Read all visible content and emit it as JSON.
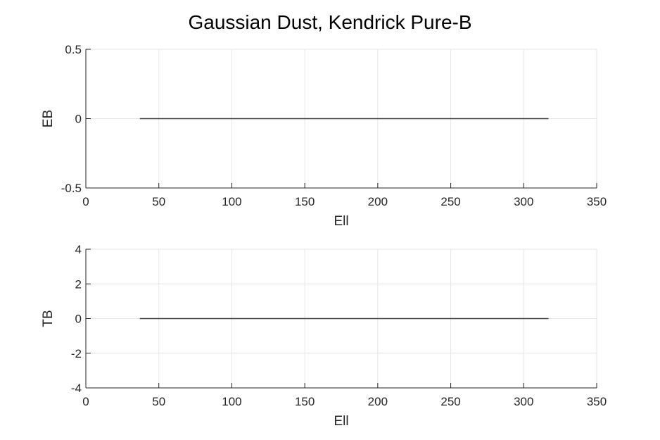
{
  "figure": {
    "title": "Gaussian Dust, Kendrick Pure-B"
  },
  "chart_data": [
    {
      "type": "line",
      "xlabel": "Ell",
      "ylabel": "EB",
      "xlim": [
        0,
        350
      ],
      "ylim": [
        -0.5,
        0.5
      ],
      "xticks": [
        0,
        50,
        100,
        150,
        200,
        250,
        300,
        350
      ],
      "yticks": [
        -0.5,
        0,
        0.5
      ],
      "xtick_labels": [
        "0",
        "50",
        "100",
        "150",
        "200",
        "250",
        "300",
        "350"
      ],
      "ytick_labels": [
        "-0.5",
        "0",
        "0.5"
      ],
      "grid": true,
      "series": [
        {
          "x": [
            37,
            317
          ],
          "y": [
            0,
            0
          ],
          "color": "#404040"
        }
      ]
    },
    {
      "type": "line",
      "xlabel": "Ell",
      "ylabel": "TB",
      "xlim": [
        0,
        350
      ],
      "ylim": [
        -4,
        4
      ],
      "xticks": [
        0,
        50,
        100,
        150,
        200,
        250,
        300,
        350
      ],
      "yticks": [
        -4,
        -2,
        0,
        2,
        4
      ],
      "xtick_labels": [
        "0",
        "50",
        "100",
        "150",
        "200",
        "250",
        "300",
        "350"
      ],
      "ytick_labels": [
        "-4",
        "-2",
        "0",
        "2",
        "4"
      ],
      "grid": true,
      "series": [
        {
          "x": [
            37,
            317
          ],
          "y": [
            0,
            0
          ],
          "color": "#404040"
        }
      ]
    }
  ]
}
